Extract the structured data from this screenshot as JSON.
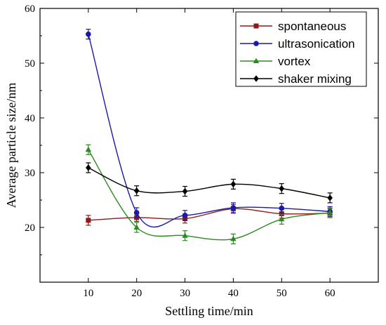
{
  "chart_data": {
    "type": "line",
    "title": "",
    "xlabel": "Settling time/min",
    "ylabel": "Average particle size/nm",
    "x": [
      10,
      20,
      30,
      40,
      50,
      60
    ],
    "xlim": [
      0,
      70
    ],
    "ylim": [
      10,
      60
    ],
    "xticks": [
      "10",
      "20",
      "30",
      "40",
      "50",
      "60"
    ],
    "yticks": [
      "20",
      "30",
      "40",
      "50",
      "60"
    ],
    "legend_position": "top-right",
    "curve": "smooth spline with error bars",
    "series": [
      {
        "name": "spontaneous",
        "color": "#8b1a1a",
        "marker": "square",
        "values": [
          21.3,
          21.8,
          21.6,
          23.4,
          22.5,
          22.6
        ],
        "errors": [
          0.9,
          0.7,
          0.8,
          0.8,
          0.8,
          0.8
        ]
      },
      {
        "name": "ultrasonication",
        "color": "#1a1aa8",
        "marker": "circle",
        "values": [
          55.3,
          22.7,
          22.2,
          23.6,
          23.5,
          22.9
        ],
        "errors": [
          0.9,
          0.9,
          0.9,
          0.9,
          0.9,
          0.9
        ]
      },
      {
        "name": "vortex",
        "color": "#2b8a1f",
        "marker": "triangle",
        "values": [
          34.2,
          20.0,
          18.5,
          17.9,
          21.5,
          22.7
        ],
        "errors": [
          0.9,
          0.9,
          0.9,
          0.9,
          0.9,
          0.9
        ]
      },
      {
        "name": "shaker mixing",
        "color": "#000000",
        "marker": "diamond",
        "values": [
          30.9,
          26.7,
          26.6,
          27.9,
          27.1,
          25.4
        ],
        "errors": [
          0.9,
          0.9,
          0.9,
          0.9,
          0.9,
          0.9
        ]
      }
    ]
  }
}
